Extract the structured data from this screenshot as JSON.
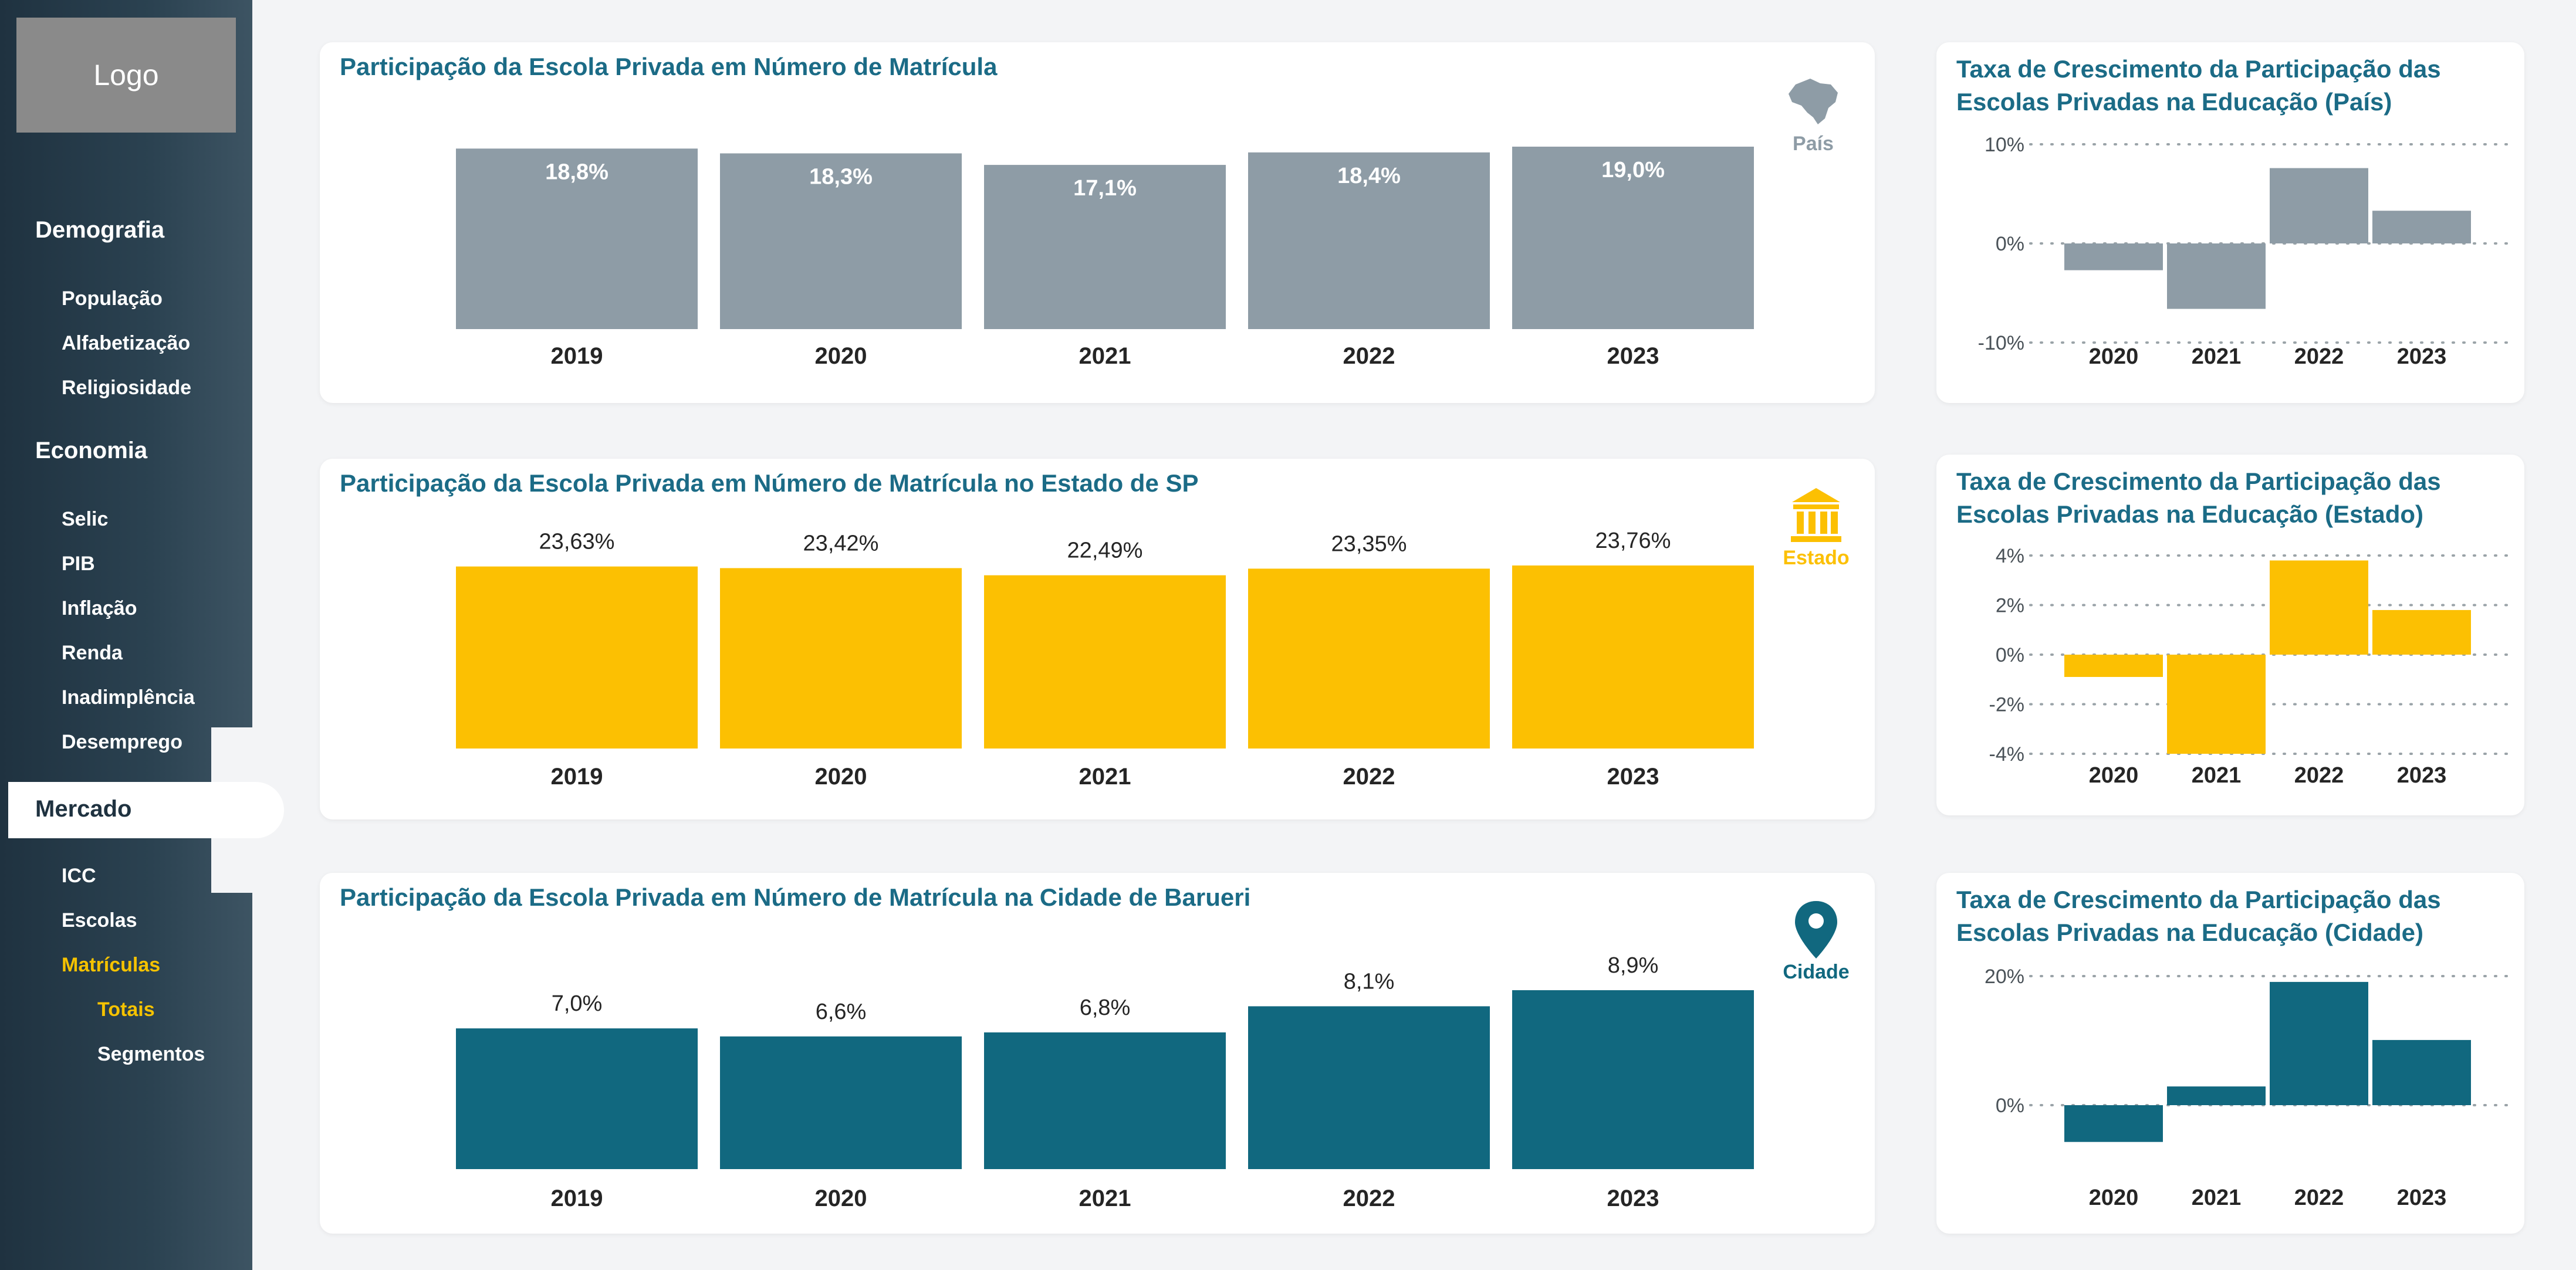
{
  "sidebar": {
    "logo": "Logo",
    "sections": [
      {
        "label": "Demografia",
        "items": [
          "População",
          "Alfabetização",
          "Religiosidade"
        ]
      },
      {
        "label": "Economia",
        "items": [
          "Selic",
          "PIB",
          "Inflação",
          "Renda",
          "Inadimplência",
          "Desemprego"
        ]
      },
      {
        "label": "Mercado",
        "items": [
          "ICC",
          "Escolas",
          "Matrículas"
        ],
        "subitems": [
          "Totais",
          "Segmentos"
        ]
      }
    ]
  },
  "colors": {
    "pais": "#8e9ca6",
    "estado": "#fcc002",
    "cidade": "#11687f",
    "title": "#1b6b86",
    "gold": "#f5c200"
  },
  "main_charts": [
    {
      "title": "Participação da Escola Privada em Número de Matrícula",
      "badge": "País",
      "icon": "brazil-map-icon",
      "chart_data": {
        "type": "bar",
        "categories": [
          "2019",
          "2020",
          "2021",
          "2022",
          "2023"
        ],
        "values": [
          18.8,
          18.3,
          17.1,
          18.4,
          19.0
        ],
        "labels": [
          "18,8%",
          "18,3%",
          "17,1%",
          "18,4%",
          "19,0%"
        ],
        "label_position": "inside"
      }
    },
    {
      "title": "Participação da Escola Privada em Número de Matrícula no Estado de SP",
      "badge": "Estado",
      "icon": "government-building-icon",
      "chart_data": {
        "type": "bar",
        "categories": [
          "2019",
          "2020",
          "2021",
          "2022",
          "2023"
        ],
        "values": [
          23.63,
          23.42,
          22.49,
          23.35,
          23.76
        ],
        "labels": [
          "23,63%",
          "23,42%",
          "22,49%",
          "23,35%",
          "23,76%"
        ],
        "label_position": "above"
      }
    },
    {
      "title": "Participação da Escola Privada em Número de Matrícula na Cidade de Barueri",
      "badge": "Cidade",
      "icon": "location-pin-icon",
      "chart_data": {
        "type": "bar",
        "categories": [
          "2019",
          "2020",
          "2021",
          "2022",
          "2023"
        ],
        "values": [
          7.0,
          6.6,
          6.8,
          8.1,
          8.9
        ],
        "labels": [
          "7,0%",
          "6,6%",
          "6,8%",
          "8,1%",
          "8,9%"
        ],
        "label_position": "above"
      }
    }
  ],
  "growth_charts": [
    {
      "title": "Taxa de Crescimento da Participação das Escolas Privadas na Educação (País)",
      "chart_data": {
        "type": "bar",
        "categories": [
          "2020",
          "2021",
          "2022",
          "2023"
        ],
        "values": [
          -2.7,
          -6.6,
          7.6,
          3.3
        ],
        "yticks": [
          10,
          0,
          -10
        ],
        "ytick_labels": [
          "10%",
          "0%",
          "-10%"
        ],
        "ylim": [
          -10,
          10
        ]
      }
    },
    {
      "title": "Taxa de Crescimento da Participação das Escolas Privadas na Educação (Estado)",
      "chart_data": {
        "type": "bar",
        "categories": [
          "2020",
          "2021",
          "2022",
          "2023"
        ],
        "values": [
          -0.9,
          -4.0,
          3.8,
          1.8
        ],
        "yticks": [
          4,
          2,
          0,
          -2,
          -4
        ],
        "ytick_labels": [
          "4%",
          "2%",
          "0%",
          "-2%",
          "-4%"
        ],
        "ylim": [
          -4,
          4
        ]
      }
    },
    {
      "title": "Taxa de Crescimento da Participação das Escolas Privadas na Educação (Cidade)",
      "chart_data": {
        "type": "bar",
        "categories": [
          "2020",
          "2021",
          "2022",
          "2023"
        ],
        "values": [
          -5.7,
          2.9,
          19.1,
          10.1
        ],
        "yticks": [
          20,
          0
        ],
        "ytick_labels": [
          "20%",
          "0%"
        ],
        "ylim": [
          -6,
          20
        ]
      }
    }
  ]
}
